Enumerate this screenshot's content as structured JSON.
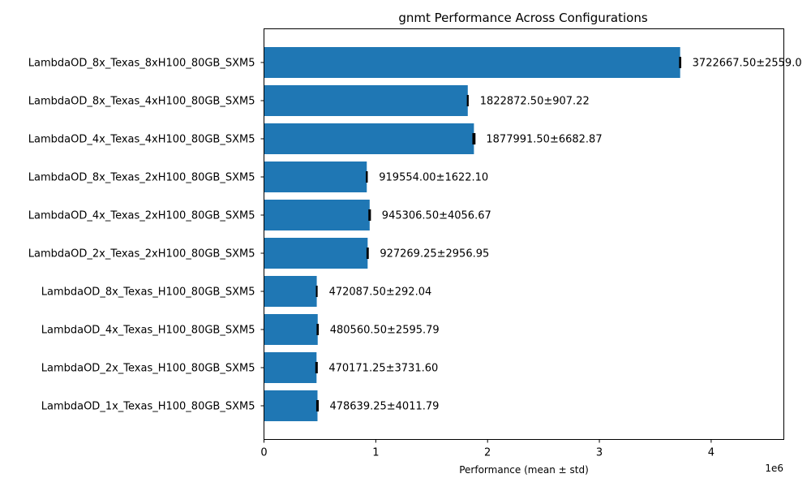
{
  "chart_data": {
    "type": "bar",
    "orientation": "horizontal",
    "title": "gnmt Performance Across Configurations",
    "xlabel": "Performance (mean ± std)",
    "ylabel": "",
    "x_scale_label": "1e6",
    "xlim": [
      0,
      4650000
    ],
    "x_ticks": [
      0,
      1000000,
      2000000,
      3000000,
      4000000
    ],
    "x_tick_labels": [
      "0",
      "1",
      "2",
      "3",
      "4"
    ],
    "grid": false,
    "bar_color": "#1f77b4",
    "error_color": "#000000",
    "categories": [
      "LambdaOD_8x_Texas_8xH100_80GB_SXM5",
      "LambdaOD_8x_Texas_4xH100_80GB_SXM5",
      "LambdaOD_4x_Texas_4xH100_80GB_SXM5",
      "LambdaOD_8x_Texas_2xH100_80GB_SXM5",
      "LambdaOD_4x_Texas_2xH100_80GB_SXM5",
      "LambdaOD_2x_Texas_2xH100_80GB_SXM5",
      "LambdaOD_8x_Texas_H100_80GB_SXM5",
      "LambdaOD_4x_Texas_H100_80GB_SXM5",
      "LambdaOD_2x_Texas_H100_80GB_SXM5",
      "LambdaOD_1x_Texas_H100_80GB_SXM5"
    ],
    "values": [
      3722667.5,
      1822872.5,
      1877991.5,
      919554.0,
      945306.5,
      927269.25,
      472087.5,
      480560.5,
      470171.25,
      478639.25
    ],
    "errors": [
      2559.0,
      907.22,
      6682.87,
      1622.1,
      4056.67,
      2956.95,
      292.04,
      2595.79,
      3731.6,
      4011.79
    ],
    "data_labels": [
      "3722667.50±2559.0",
      "1822872.50±907.22",
      "1877991.50±6682.87",
      "919554.00±1622.10",
      "945306.50±4056.67",
      "927269.25±2956.95",
      "472087.50±292.04",
      "480560.50±2595.79",
      "470171.25±3731.60",
      "478639.25±4011.79"
    ]
  }
}
